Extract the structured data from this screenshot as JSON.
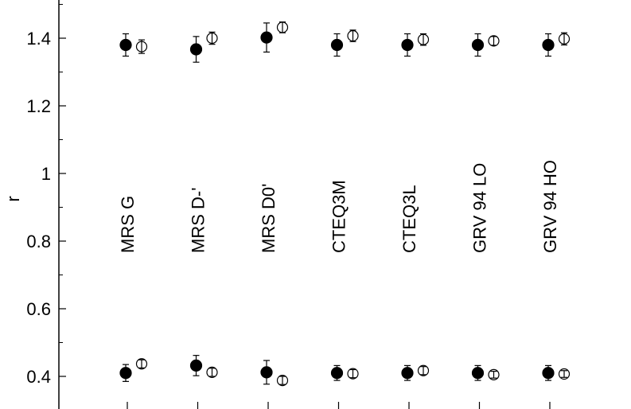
{
  "chart_data": {
    "type": "scatter",
    "title": "",
    "xlabel": "",
    "ylabel": "r",
    "ylim": [
      0.35,
      1.5
    ],
    "yticks": [
      0.4,
      0.6,
      0.8,
      1.0,
      1.2,
      1.4
    ],
    "ytick_labels": [
      "0.4",
      "0.6",
      "0.8",
      "1",
      "1.2",
      "1.4"
    ],
    "categories": [
      "MRS G",
      "MRS D-'",
      "MRS D0'",
      "CTEQ3M",
      "CTEQ3L",
      "GRV 94 LO",
      "GRV 94 HO"
    ],
    "legend": "none",
    "grid": false,
    "series": [
      {
        "marker": "filled-circle",
        "color": "#000000",
        "values": [
          1.38,
          1.367,
          1.402,
          1.38,
          1.38,
          1.38,
          1.38
        ],
        "errors": [
          0.033,
          0.038,
          0.043,
          0.033,
          0.033,
          0.033,
          0.033
        ]
      },
      {
        "marker": "open-circle",
        "color": "#000000",
        "values": [
          1.375,
          1.4,
          1.432,
          1.407,
          1.396,
          1.392,
          1.398
        ],
        "errors": [
          0.02,
          0.018,
          0.016,
          0.017,
          0.017,
          0.013,
          0.018
        ]
      },
      {
        "marker": "filled-circle",
        "color": "#000000",
        "values": [
          0.41,
          0.432,
          0.412,
          0.41,
          0.41,
          0.41,
          0.41
        ],
        "errors": [
          0.025,
          0.03,
          0.035,
          0.022,
          0.022,
          0.022,
          0.022
        ]
      },
      {
        "marker": "open-circle",
        "color": "#000000",
        "values": [
          0.437,
          0.412,
          0.388,
          0.408,
          0.417,
          0.405,
          0.407
        ],
        "errors": [
          0.012,
          0.012,
          0.012,
          0.012,
          0.012,
          0.01,
          0.01
        ]
      }
    ]
  }
}
